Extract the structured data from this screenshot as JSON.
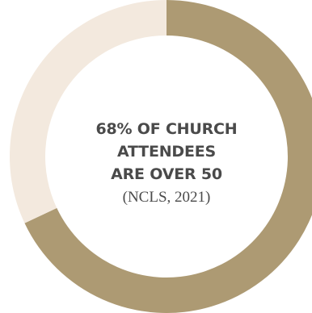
{
  "colors": {
    "majority": "#ad9a73",
    "minority": "#f3e9de",
    "text": "#4a4a4a"
  },
  "center": {
    "headline_lines": [
      "68% OF CHURCH",
      "ATTENDEES",
      "ARE OVER 50"
    ],
    "source": "(NCLS, 2021)"
  },
  "chart_data": {
    "type": "pie",
    "variant": "donut",
    "start_angle_deg": 0,
    "direction": "clockwise",
    "slices": [
      {
        "value": 68,
        "color": "#ad9a73"
      },
      {
        "value": 32,
        "color": "#f3e9de"
      }
    ]
  }
}
